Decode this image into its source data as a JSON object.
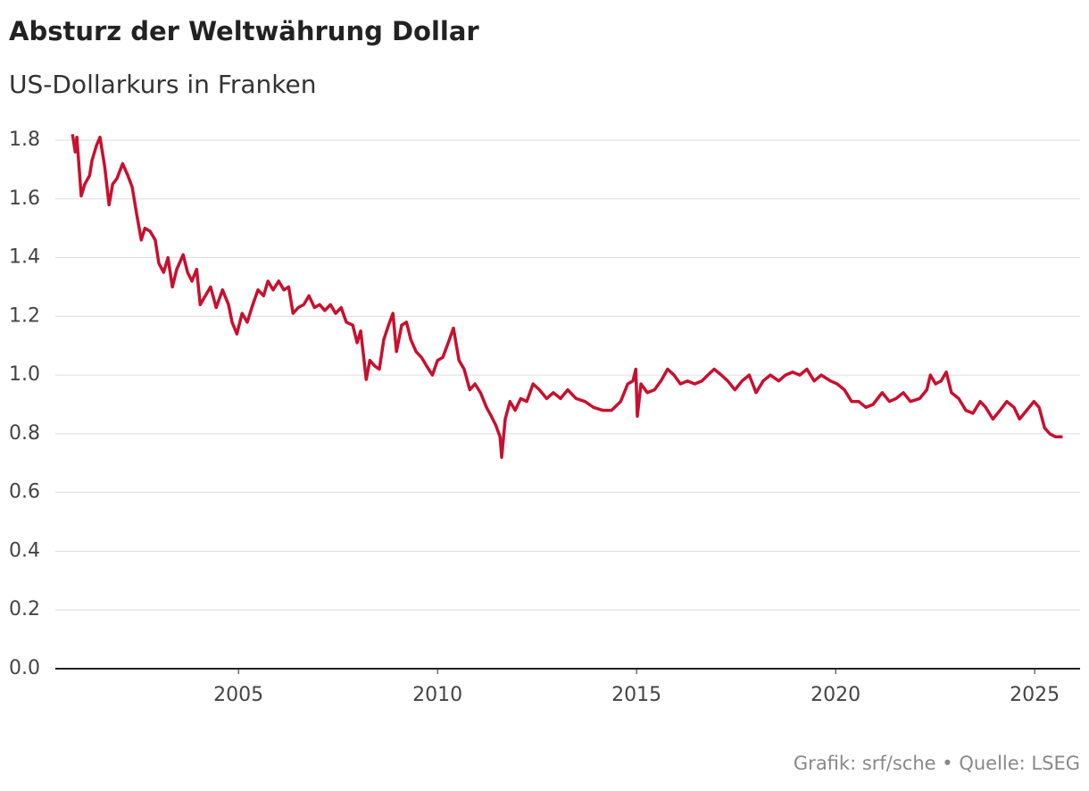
{
  "chart_data": {
    "type": "line",
    "title": "Absturz der Weltwährung Dollar",
    "subtitle": "US-Dollarkurs in Franken",
    "source": "Grafik: srf/sche • Quelle: LSEG",
    "color": "#c8102e",
    "grid": true,
    "xlim": [
      2000.4,
      2026.14
    ],
    "xticks": [
      2005,
      2010,
      2015,
      2020,
      2025
    ],
    "ylim": [
      0,
      1.8
    ],
    "yticks": [
      {
        "value": 0,
        "label": "0.0"
      },
      0.2,
      0.4,
      0.6,
      0.8,
      {
        "value": 1,
        "label": "1.0"
      },
      1.2,
      1.4,
      1.6,
      1.8
    ],
    "x": [
      2000.83,
      2000.9,
      2000.94,
      2001.05,
      2001.14,
      2001.26,
      2001.32,
      2001.43,
      2001.52,
      2001.64,
      2001.75,
      2001.84,
      2001.95,
      2002.09,
      2002.22,
      2002.33,
      2002.44,
      2002.56,
      2002.65,
      2002.78,
      2002.91,
      2003.0,
      2003.12,
      2003.23,
      2003.34,
      2003.45,
      2003.61,
      2003.72,
      2003.83,
      2003.95,
      2004.04,
      2004.17,
      2004.3,
      2004.44,
      2004.6,
      2004.75,
      2004.84,
      2004.96,
      2005.09,
      2005.22,
      2005.36,
      2005.49,
      2005.63,
      2005.74,
      2005.87,
      2006.01,
      2006.14,
      2006.26,
      2006.37,
      2006.5,
      2006.64,
      2006.77,
      2006.91,
      2007.04,
      2007.17,
      2007.31,
      2007.44,
      2007.58,
      2007.71,
      2007.87,
      2007.98,
      2008.07,
      2008.21,
      2008.3,
      2008.43,
      2008.54,
      2008.65,
      2008.77,
      2008.88,
      2008.97,
      2009.1,
      2009.22,
      2009.33,
      2009.46,
      2009.6,
      2009.73,
      2009.87,
      2010.0,
      2010.13,
      2010.27,
      2010.4,
      2010.54,
      2010.67,
      2010.81,
      2010.94,
      2011.08,
      2011.23,
      2011.35,
      2011.46,
      2011.57,
      2011.61,
      2011.7,
      2011.82,
      2011.95,
      2012.09,
      2012.24,
      2012.4,
      2012.56,
      2012.74,
      2012.91,
      2013.09,
      2013.27,
      2013.48,
      2013.7,
      2013.92,
      2014.15,
      2014.37,
      2014.6,
      2014.78,
      2014.91,
      2014.98,
      2015.02,
      2015.11,
      2015.27,
      2015.45,
      2015.61,
      2015.78,
      2015.94,
      2016.1,
      2016.28,
      2016.46,
      2016.64,
      2016.79,
      2016.95,
      2017.13,
      2017.29,
      2017.47,
      2017.65,
      2017.83,
      2018.0,
      2018.18,
      2018.36,
      2018.57,
      2018.74,
      2018.92,
      2019.1,
      2019.28,
      2019.46,
      2019.64,
      2019.87,
      2020.04,
      2020.22,
      2020.4,
      2020.58,
      2020.76,
      2020.94,
      2021.17,
      2021.35,
      2021.52,
      2021.7,
      2021.88,
      2022.11,
      2022.29,
      2022.38,
      2022.51,
      2022.65,
      2022.78,
      2022.91,
      2023.09,
      2023.27,
      2023.45,
      2023.63,
      2023.77,
      2023.95,
      2024.13,
      2024.3,
      2024.48,
      2024.62,
      2024.8,
      2024.98,
      2025.11,
      2025.25,
      2025.38,
      2025.52,
      2025.7
    ],
    "values": [
      1.82,
      1.76,
      1.81,
      1.61,
      1.65,
      1.68,
      1.73,
      1.78,
      1.81,
      1.71,
      1.58,
      1.65,
      1.67,
      1.72,
      1.68,
      1.64,
      1.55,
      1.46,
      1.5,
      1.49,
      1.46,
      1.38,
      1.35,
      1.4,
      1.3,
      1.36,
      1.41,
      1.35,
      1.32,
      1.36,
      1.24,
      1.27,
      1.3,
      1.23,
      1.29,
      1.24,
      1.18,
      1.14,
      1.21,
      1.18,
      1.24,
      1.29,
      1.27,
      1.32,
      1.29,
      1.32,
      1.29,
      1.3,
      1.21,
      1.23,
      1.24,
      1.27,
      1.23,
      1.24,
      1.22,
      1.24,
      1.21,
      1.23,
      1.18,
      1.17,
      1.11,
      1.15,
      0.985,
      1.05,
      1.03,
      1.02,
      1.12,
      1.17,
      1.21,
      1.08,
      1.17,
      1.18,
      1.12,
      1.08,
      1.06,
      1.03,
      1.0,
      1.05,
      1.06,
      1.11,
      1.16,
      1.05,
      1.02,
      0.95,
      0.97,
      0.94,
      0.89,
      0.86,
      0.83,
      0.79,
      0.72,
      0.85,
      0.91,
      0.88,
      0.92,
      0.91,
      0.97,
      0.95,
      0.92,
      0.94,
      0.92,
      0.95,
      0.92,
      0.91,
      0.89,
      0.88,
      0.88,
      0.91,
      0.97,
      0.98,
      1.02,
      0.86,
      0.97,
      0.94,
      0.95,
      0.98,
      1.02,
      1.0,
      0.97,
      0.98,
      0.97,
      0.98,
      1.0,
      1.02,
      1.0,
      0.98,
      0.95,
      0.98,
      1.0,
      0.94,
      0.98,
      1.0,
      0.98,
      1.0,
      1.01,
      1.0,
      1.02,
      0.98,
      1.0,
      0.98,
      0.97,
      0.95,
      0.91,
      0.91,
      0.89,
      0.9,
      0.94,
      0.91,
      0.92,
      0.94,
      0.91,
      0.92,
      0.95,
      1.0,
      0.97,
      0.98,
      1.01,
      0.94,
      0.92,
      0.88,
      0.87,
      0.91,
      0.89,
      0.85,
      0.88,
      0.91,
      0.89,
      0.85,
      0.88,
      0.91,
      0.89,
      0.82,
      0.8,
      0.79,
      0.79
    ]
  }
}
